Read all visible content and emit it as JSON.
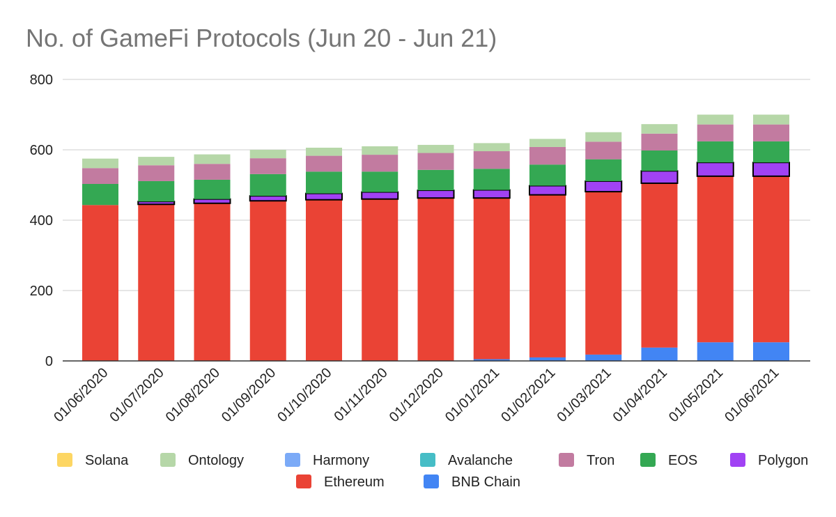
{
  "chart_data": {
    "type": "bar",
    "stacked": true,
    "title": "No. of GameFi Protocols (Jun 20 - Jun 21)",
    "xlabel": "",
    "ylabel": "",
    "ylim": [
      0,
      800
    ],
    "yticks": [
      0,
      200,
      400,
      600,
      800
    ],
    "grid": true,
    "legend_position": "bottom",
    "categories": [
      "01/06/2020",
      "01/07/2020",
      "01/08/2020",
      "01/09/2020",
      "01/10/2020",
      "01/11/2020",
      "01/12/2020",
      "01/01/2021",
      "01/02/2021",
      "01/03/2021",
      "01/04/2021",
      "01/05/2021",
      "01/06/2021"
    ],
    "series": [
      {
        "name": "BNB Chain",
        "color": "#4285f4",
        "values": [
          0,
          0,
          0,
          0,
          0,
          0,
          0,
          5,
          10,
          18,
          38,
          53,
          53
        ]
      },
      {
        "name": "Ethereum",
        "color": "#ea4335",
        "values": [
          443,
          445,
          448,
          455,
          458,
          460,
          463,
          458,
          462,
          463,
          467,
          472,
          472
        ]
      },
      {
        "name": "Polygon",
        "color": "#a142f4",
        "values": [
          0,
          8,
          12,
          14,
          18,
          20,
          22,
          23,
          26,
          30,
          35,
          39,
          39
        ]
      },
      {
        "name": "EOS",
        "color": "#34a853",
        "values": [
          60,
          58,
          55,
          62,
          62,
          58,
          58,
          60,
          60,
          62,
          58,
          60,
          60
        ]
      },
      {
        "name": "Tron",
        "color": "#c27ba0",
        "values": [
          45,
          45,
          45,
          45,
          45,
          48,
          48,
          50,
          50,
          50,
          48,
          48,
          48
        ]
      },
      {
        "name": "Avalanche",
        "color": "#46bdc6",
        "values": [
          0,
          0,
          0,
          0,
          0,
          0,
          0,
          0,
          0,
          0,
          0,
          0,
          0
        ]
      },
      {
        "name": "Harmony",
        "color": "#7baaf7",
        "values": [
          0,
          0,
          0,
          0,
          0,
          0,
          0,
          0,
          0,
          0,
          0,
          0,
          0
        ]
      },
      {
        "name": "Ontology",
        "color": "#b6d7a8",
        "values": [
          27,
          24,
          27,
          24,
          23,
          24,
          23,
          23,
          23,
          27,
          27,
          28,
          28
        ]
      },
      {
        "name": "Solana",
        "color": "#fdd663",
        "values": [
          0,
          0,
          0,
          0,
          0,
          0,
          0,
          0,
          0,
          0,
          0,
          0,
          0
        ]
      }
    ],
    "highlighted_series": "Polygon",
    "legend_order": [
      "Solana",
      "Ontology",
      "Harmony",
      "Avalanche",
      "Tron",
      "EOS",
      "Polygon",
      "Ethereum",
      "BNB Chain"
    ]
  }
}
